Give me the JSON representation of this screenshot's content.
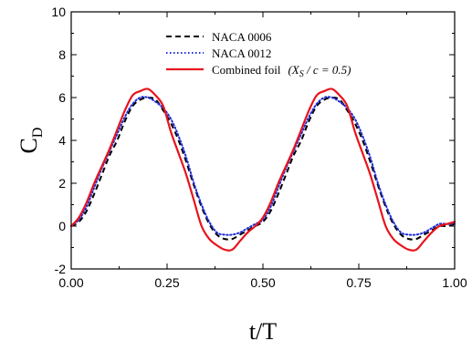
{
  "chart_data": {
    "type": "line",
    "xlabel": "t/T",
    "ylabel_main": "C",
    "ylabel_sub": "D",
    "xlim": [
      0,
      1
    ],
    "ylim": [
      -2,
      10
    ],
    "x_ticks": [
      0,
      0.25,
      0.5,
      0.75,
      1.0
    ],
    "x_tick_labels": [
      "0.00",
      "0.25",
      "0.50",
      "0.75",
      "1.00"
    ],
    "y_ticks": [
      -2,
      0,
      2,
      4,
      6,
      8,
      10
    ],
    "y_tick_labels": [
      "-2",
      "0",
      "2",
      "4",
      "6",
      "8",
      "10"
    ],
    "grid": false,
    "legend_position": "top-center",
    "legend": {
      "naca0006": "NACA 0006",
      "naca0012": "NACA 0012",
      "combined_prefix": "Combined foil",
      "combined_math": "(X",
      "combined_sub": "S",
      "combined_tail": " / c = 0.5)"
    },
    "series": [
      {
        "key": "naca0006",
        "color": "#000000",
        "style": "dashed",
        "x": [
          0.0,
          0.02,
          0.04,
          0.06,
          0.08,
          0.1,
          0.12,
          0.14,
          0.16,
          0.18,
          0.2,
          0.22,
          0.24,
          0.26,
          0.28,
          0.3,
          0.32,
          0.34,
          0.36,
          0.38,
          0.4,
          0.42,
          0.44,
          0.46,
          0.48,
          0.5,
          0.52,
          0.54,
          0.56,
          0.58,
          0.6,
          0.62,
          0.64,
          0.66,
          0.68,
          0.7,
          0.72,
          0.74,
          0.76,
          0.78,
          0.8,
          0.82,
          0.84,
          0.86,
          0.88,
          0.9,
          0.92,
          0.94,
          0.96,
          0.98,
          1.0
        ],
        "y": [
          0.0,
          0.2,
          0.7,
          1.5,
          2.4,
          3.3,
          4.0,
          4.9,
          5.6,
          5.9,
          6.0,
          5.9,
          5.4,
          4.8,
          4.0,
          3.0,
          1.9,
          0.9,
          0.1,
          -0.4,
          -0.6,
          -0.6,
          -0.4,
          -0.2,
          0.0,
          0.2,
          0.7,
          1.5,
          2.4,
          3.3,
          4.0,
          4.9,
          5.6,
          5.9,
          6.0,
          5.9,
          5.4,
          4.8,
          4.0,
          3.0,
          1.9,
          0.9,
          0.1,
          -0.4,
          -0.6,
          -0.6,
          -0.4,
          -0.2,
          0.0,
          0.0,
          0.1
        ]
      },
      {
        "key": "naca0012",
        "color": "#1f2dd8",
        "style": "dotted",
        "x": [
          0.0,
          0.02,
          0.04,
          0.06,
          0.08,
          0.1,
          0.12,
          0.14,
          0.16,
          0.18,
          0.2,
          0.22,
          0.24,
          0.26,
          0.28,
          0.3,
          0.32,
          0.34,
          0.36,
          0.38,
          0.4,
          0.42,
          0.44,
          0.46,
          0.48,
          0.5,
          0.52,
          0.54,
          0.56,
          0.58,
          0.6,
          0.62,
          0.64,
          0.66,
          0.68,
          0.7,
          0.72,
          0.74,
          0.76,
          0.78,
          0.8,
          0.82,
          0.84,
          0.86,
          0.88,
          0.9,
          0.92,
          0.94,
          0.96,
          0.98,
          1.0
        ],
        "y": [
          0.0,
          0.3,
          0.9,
          1.8,
          2.7,
          3.5,
          4.3,
          5.1,
          5.7,
          6.0,
          6.0,
          5.8,
          5.5,
          5.0,
          4.2,
          3.2,
          2.0,
          1.0,
          0.2,
          -0.3,
          -0.4,
          -0.4,
          -0.3,
          -0.1,
          0.1,
          0.3,
          0.9,
          1.8,
          2.7,
          3.5,
          4.3,
          5.1,
          5.7,
          6.0,
          6.0,
          5.8,
          5.5,
          5.0,
          4.2,
          3.2,
          2.0,
          1.0,
          0.2,
          -0.3,
          -0.4,
          -0.4,
          -0.3,
          -0.1,
          0.1,
          0.1,
          0.1
        ]
      },
      {
        "key": "combined",
        "color": "#e8141c",
        "style": "solid",
        "x": [
          0.0,
          0.02,
          0.04,
          0.06,
          0.08,
          0.1,
          0.12,
          0.14,
          0.16,
          0.18,
          0.2,
          0.22,
          0.24,
          0.26,
          0.28,
          0.3,
          0.32,
          0.34,
          0.36,
          0.38,
          0.4,
          0.42,
          0.44,
          0.46,
          0.48,
          0.5,
          0.52,
          0.54,
          0.56,
          0.58,
          0.6,
          0.62,
          0.64,
          0.66,
          0.68,
          0.7,
          0.72,
          0.74,
          0.76,
          0.78,
          0.8,
          0.82,
          0.84,
          0.86,
          0.88,
          0.9,
          0.92,
          0.94,
          0.96,
          0.98,
          1.0
        ],
        "y": [
          0.0,
          0.4,
          1.1,
          2.0,
          2.8,
          3.6,
          4.5,
          5.4,
          6.1,
          6.3,
          6.4,
          6.1,
          5.6,
          4.4,
          3.4,
          2.4,
          1.2,
          0.0,
          -0.6,
          -0.9,
          -1.1,
          -1.1,
          -0.7,
          -0.3,
          0.0,
          0.4,
          1.1,
          2.0,
          2.8,
          3.6,
          4.5,
          5.4,
          6.1,
          6.3,
          6.4,
          6.1,
          5.6,
          4.4,
          3.4,
          2.4,
          1.2,
          0.0,
          -0.6,
          -0.9,
          -1.1,
          -1.1,
          -0.7,
          -0.3,
          0.0,
          0.1,
          0.2
        ]
      }
    ]
  }
}
